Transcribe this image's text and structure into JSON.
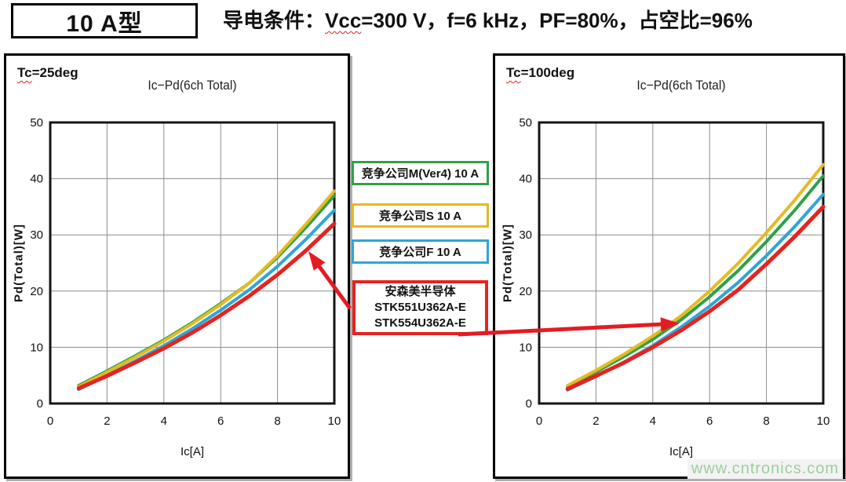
{
  "header": {
    "type_label": "10 A型",
    "conditions_prefix": "导电条件：",
    "conditions_vcc": "Vcc",
    "conditions_rest": "=300 V，f=6 kHz，PF=80%，占空比=96%"
  },
  "colors": {
    "competitor_m_green": "#2fa148",
    "competitor_s_yellow": "#e5ba22",
    "competitor_f_blue": "#2ea5d8",
    "onsemi_red": "#e6231f",
    "arrow": "#e41b23",
    "watermark_green": "#9bcf9b",
    "grid_gray": "#8c8c8c"
  },
  "legend": {
    "competitor_m": "竞争公司M(Ver4) 10 A",
    "competitor_s": "竞争公司S 10 A",
    "competitor_f": "竞争公司F 10 A",
    "onsemi_line1": "安森美半导体",
    "onsemi_line2": "STK551U362A-E",
    "onsemi_line3": "STK554U362A-E"
  },
  "watermark": "www.cntronics.com",
  "chart_data": [
    {
      "type": "line",
      "panel": "left",
      "condition": {
        "prefix": "Tc",
        "rest": "=25deg"
      },
      "title": "Ic−Pd(6ch Total)",
      "xlabel": "Ic[A]",
      "ylabel": "Pd(Total)[W]",
      "xlim": [
        0,
        10
      ],
      "ylim": [
        0,
        50
      ],
      "xticks": [
        0,
        2,
        4,
        6,
        8,
        10
      ],
      "yticks": [
        0,
        10,
        20,
        30,
        40,
        50
      ],
      "grid": true,
      "x": [
        1,
        2,
        3,
        4,
        5,
        6,
        7,
        8,
        9,
        10
      ],
      "series": [
        {
          "id": "competitor-m",
          "name": "竞争公司M(Ver4) 10 A",
          "color": "#2fa148",
          "width": 4,
          "values": [
            3.2,
            5.8,
            8.5,
            11.3,
            14.4,
            17.8,
            21.4,
            26.0,
            31.3,
            37.0
          ]
        },
        {
          "id": "competitor-s",
          "name": "竞争公司S 10 A",
          "color": "#e5ba22",
          "width": 4,
          "values": [
            3.0,
            5.6,
            8.3,
            11.1,
            14.2,
            17.6,
            21.4,
            26.3,
            31.9,
            37.8
          ]
        },
        {
          "id": "competitor-f",
          "name": "竞争公司F 10 A",
          "color": "#2ea5d8",
          "width": 4,
          "values": [
            2.5,
            5.0,
            7.6,
            10.3,
            13.3,
            16.6,
            20.2,
            24.4,
            29.2,
            34.4
          ]
        },
        {
          "id": "onsemi",
          "name": "安森美半导体 STK551U362A-E / STK554U362A-E",
          "color": "#e6231f",
          "width": 5,
          "values": [
            2.7,
            4.9,
            7.3,
            9.8,
            12.6,
            15.7,
            19.1,
            22.9,
            27.2,
            32.0
          ]
        }
      ]
    },
    {
      "type": "line",
      "panel": "right",
      "condition": {
        "prefix": "Tc",
        "rest": "=100deg"
      },
      "title": "Ic−Pd(6ch Total)",
      "xlabel": "Ic[A]",
      "ylabel": "Pd(Total)[W]",
      "xlim": [
        0,
        10
      ],
      "ylim": [
        0,
        50
      ],
      "xticks": [
        0,
        2,
        4,
        6,
        8,
        10
      ],
      "yticks": [
        0,
        10,
        20,
        30,
        40,
        50
      ],
      "grid": true,
      "x": [
        1,
        2,
        3,
        4,
        5,
        6,
        7,
        8,
        9,
        10
      ],
      "series": [
        {
          "id": "competitor-m",
          "name": "竞争公司M(Ver4) 10 A",
          "color": "#2fa148",
          "width": 4,
          "values": [
            3.0,
            5.6,
            8.4,
            11.4,
            14.9,
            19.0,
            23.6,
            28.8,
            34.4,
            40.5
          ]
        },
        {
          "id": "competitor-s",
          "name": "竞争公司S 10 A",
          "color": "#e5ba22",
          "width": 4,
          "values": [
            3.2,
            5.9,
            8.8,
            12.0,
            15.6,
            20.0,
            24.9,
            30.4,
            36.2,
            42.5
          ]
        },
        {
          "id": "competitor-f",
          "name": "竞争公司F 10 A",
          "color": "#2ea5d8",
          "width": 4,
          "values": [
            2.4,
            4.8,
            7.4,
            10.3,
            13.6,
            17.3,
            21.5,
            26.3,
            31.5,
            37.2
          ]
        },
        {
          "id": "onsemi",
          "name": "安森美半导体 STK551U362A-E / STK554U362A-E",
          "color": "#e6231f",
          "width": 5,
          "values": [
            2.6,
            4.9,
            7.3,
            10.0,
            13.0,
            16.4,
            20.2,
            24.8,
            29.7,
            35.0
          ]
        }
      ]
    }
  ]
}
